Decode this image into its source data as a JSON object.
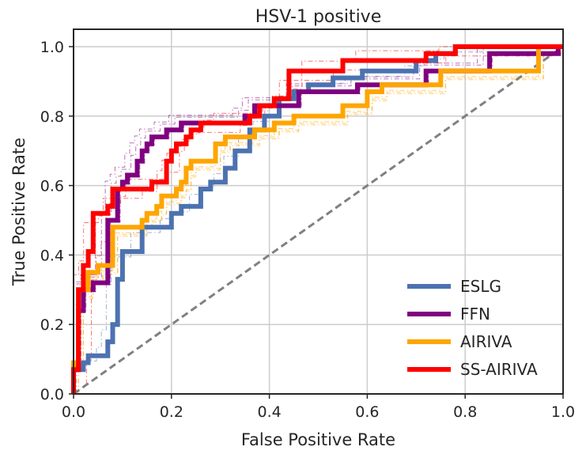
{
  "chart_data": {
    "type": "line",
    "title": "HSV-1 positive",
    "xlabel": "False Positive Rate",
    "ylabel": "True Positive Rate",
    "xlim": [
      0.0,
      1.0
    ],
    "ylim": [
      0.0,
      1.05
    ],
    "xticks": [
      "0.0",
      "0.2",
      "0.4",
      "0.6",
      "0.8",
      "1.0"
    ],
    "yticks": [
      "0.0",
      "0.2",
      "0.4",
      "0.6",
      "0.8",
      "1.0"
    ],
    "grid": true,
    "legend_position": "lower-right",
    "diagonal": {
      "x": [
        0.0,
        1.0
      ],
      "y": [
        0.0,
        1.0
      ],
      "color": "#808080",
      "style": "dashed"
    },
    "series": [
      {
        "name": "ESLG",
        "color": "#4c72b0",
        "x": [
          0.0,
          0.0,
          0.02,
          0.02,
          0.03,
          0.03,
          0.07,
          0.07,
          0.08,
          0.08,
          0.09,
          0.09,
          0.1,
          0.1,
          0.14,
          0.14,
          0.2,
          0.2,
          0.22,
          0.22,
          0.26,
          0.26,
          0.28,
          0.28,
          0.31,
          0.31,
          0.33,
          0.33,
          0.36,
          0.36,
          0.39,
          0.39,
          0.42,
          0.42,
          0.45,
          0.45,
          0.48,
          0.48,
          0.53,
          0.53,
          0.59,
          0.59,
          0.7,
          0.7,
          0.74,
          0.74,
          0.78,
          0.78,
          0.85,
          0.85,
          1.0
        ],
        "y": [
          0.0,
          0.07,
          0.07,
          0.09,
          0.09,
          0.11,
          0.11,
          0.15,
          0.15,
          0.2,
          0.2,
          0.33,
          0.33,
          0.41,
          0.41,
          0.48,
          0.48,
          0.52,
          0.52,
          0.54,
          0.54,
          0.59,
          0.59,
          0.61,
          0.61,
          0.65,
          0.65,
          0.7,
          0.7,
          0.76,
          0.76,
          0.8,
          0.8,
          0.85,
          0.85,
          0.87,
          0.87,
          0.89,
          0.89,
          0.91,
          0.91,
          0.93,
          0.93,
          0.96,
          0.96,
          0.98,
          0.98,
          1.0,
          1.0,
          1.0,
          1.0
        ]
      },
      {
        "name": "FFN",
        "color": "#800080",
        "x": [
          0.0,
          0.0,
          0.01,
          0.01,
          0.02,
          0.02,
          0.04,
          0.04,
          0.07,
          0.07,
          0.09,
          0.09,
          0.1,
          0.1,
          0.11,
          0.11,
          0.13,
          0.13,
          0.14,
          0.14,
          0.15,
          0.15,
          0.16,
          0.16,
          0.19,
          0.19,
          0.22,
          0.22,
          0.35,
          0.35,
          0.37,
          0.37,
          0.46,
          0.46,
          0.58,
          0.58,
          0.72,
          0.72,
          0.85,
          0.85,
          0.99,
          0.99,
          1.0
        ],
        "y": [
          0.0,
          0.07,
          0.07,
          0.24,
          0.24,
          0.3,
          0.3,
          0.32,
          0.32,
          0.5,
          0.5,
          0.59,
          0.59,
          0.61,
          0.61,
          0.63,
          0.63,
          0.67,
          0.67,
          0.7,
          0.7,
          0.72,
          0.72,
          0.74,
          0.74,
          0.76,
          0.76,
          0.78,
          0.78,
          0.8,
          0.8,
          0.83,
          0.83,
          0.87,
          0.87,
          0.89,
          0.89,
          0.93,
          0.93,
          0.98,
          0.98,
          1.0,
          1.0
        ]
      },
      {
        "name": "AIRIVA",
        "color": "#ffa500",
        "x": [
          0.0,
          0.0,
          0.01,
          0.01,
          0.03,
          0.03,
          0.05,
          0.05,
          0.08,
          0.08,
          0.14,
          0.14,
          0.15,
          0.15,
          0.17,
          0.17,
          0.18,
          0.18,
          0.21,
          0.21,
          0.22,
          0.22,
          0.23,
          0.23,
          0.24,
          0.24,
          0.29,
          0.29,
          0.31,
          0.31,
          0.37,
          0.37,
          0.41,
          0.41,
          0.45,
          0.45,
          0.55,
          0.55,
          0.6,
          0.6,
          0.63,
          0.63,
          0.75,
          0.75,
          0.95,
          0.95,
          1.0
        ],
        "y": [
          0.0,
          0.09,
          0.09,
          0.3,
          0.3,
          0.35,
          0.35,
          0.37,
          0.37,
          0.48,
          0.48,
          0.5,
          0.5,
          0.52,
          0.52,
          0.54,
          0.54,
          0.57,
          0.57,
          0.59,
          0.59,
          0.61,
          0.61,
          0.65,
          0.65,
          0.67,
          0.67,
          0.72,
          0.72,
          0.74,
          0.74,
          0.76,
          0.76,
          0.78,
          0.78,
          0.8,
          0.8,
          0.83,
          0.83,
          0.87,
          0.87,
          0.89,
          0.89,
          0.93,
          0.93,
          1.0,
          1.0
        ]
      },
      {
        "name": "SS-AIRIVA",
        "color": "#ff0000",
        "x": [
          0.0,
          0.0,
          0.01,
          0.01,
          0.02,
          0.02,
          0.03,
          0.03,
          0.04,
          0.04,
          0.07,
          0.07,
          0.08,
          0.08,
          0.16,
          0.16,
          0.19,
          0.19,
          0.2,
          0.2,
          0.21,
          0.21,
          0.23,
          0.23,
          0.24,
          0.24,
          0.26,
          0.26,
          0.36,
          0.36,
          0.38,
          0.38,
          0.41,
          0.41,
          0.44,
          0.44,
          0.55,
          0.55,
          0.72,
          0.72,
          0.78,
          0.78,
          1.0
        ],
        "y": [
          0.0,
          0.07,
          0.07,
          0.3,
          0.3,
          0.37,
          0.37,
          0.41,
          0.41,
          0.52,
          0.52,
          0.54,
          0.54,
          0.59,
          0.59,
          0.61,
          0.61,
          0.67,
          0.67,
          0.7,
          0.7,
          0.72,
          0.72,
          0.74,
          0.74,
          0.76,
          0.76,
          0.78,
          0.78,
          0.8,
          0.8,
          0.83,
          0.83,
          0.85,
          0.85,
          0.93,
          0.93,
          0.96,
          0.96,
          0.98,
          0.98,
          1.0,
          1.0
        ]
      }
    ]
  }
}
